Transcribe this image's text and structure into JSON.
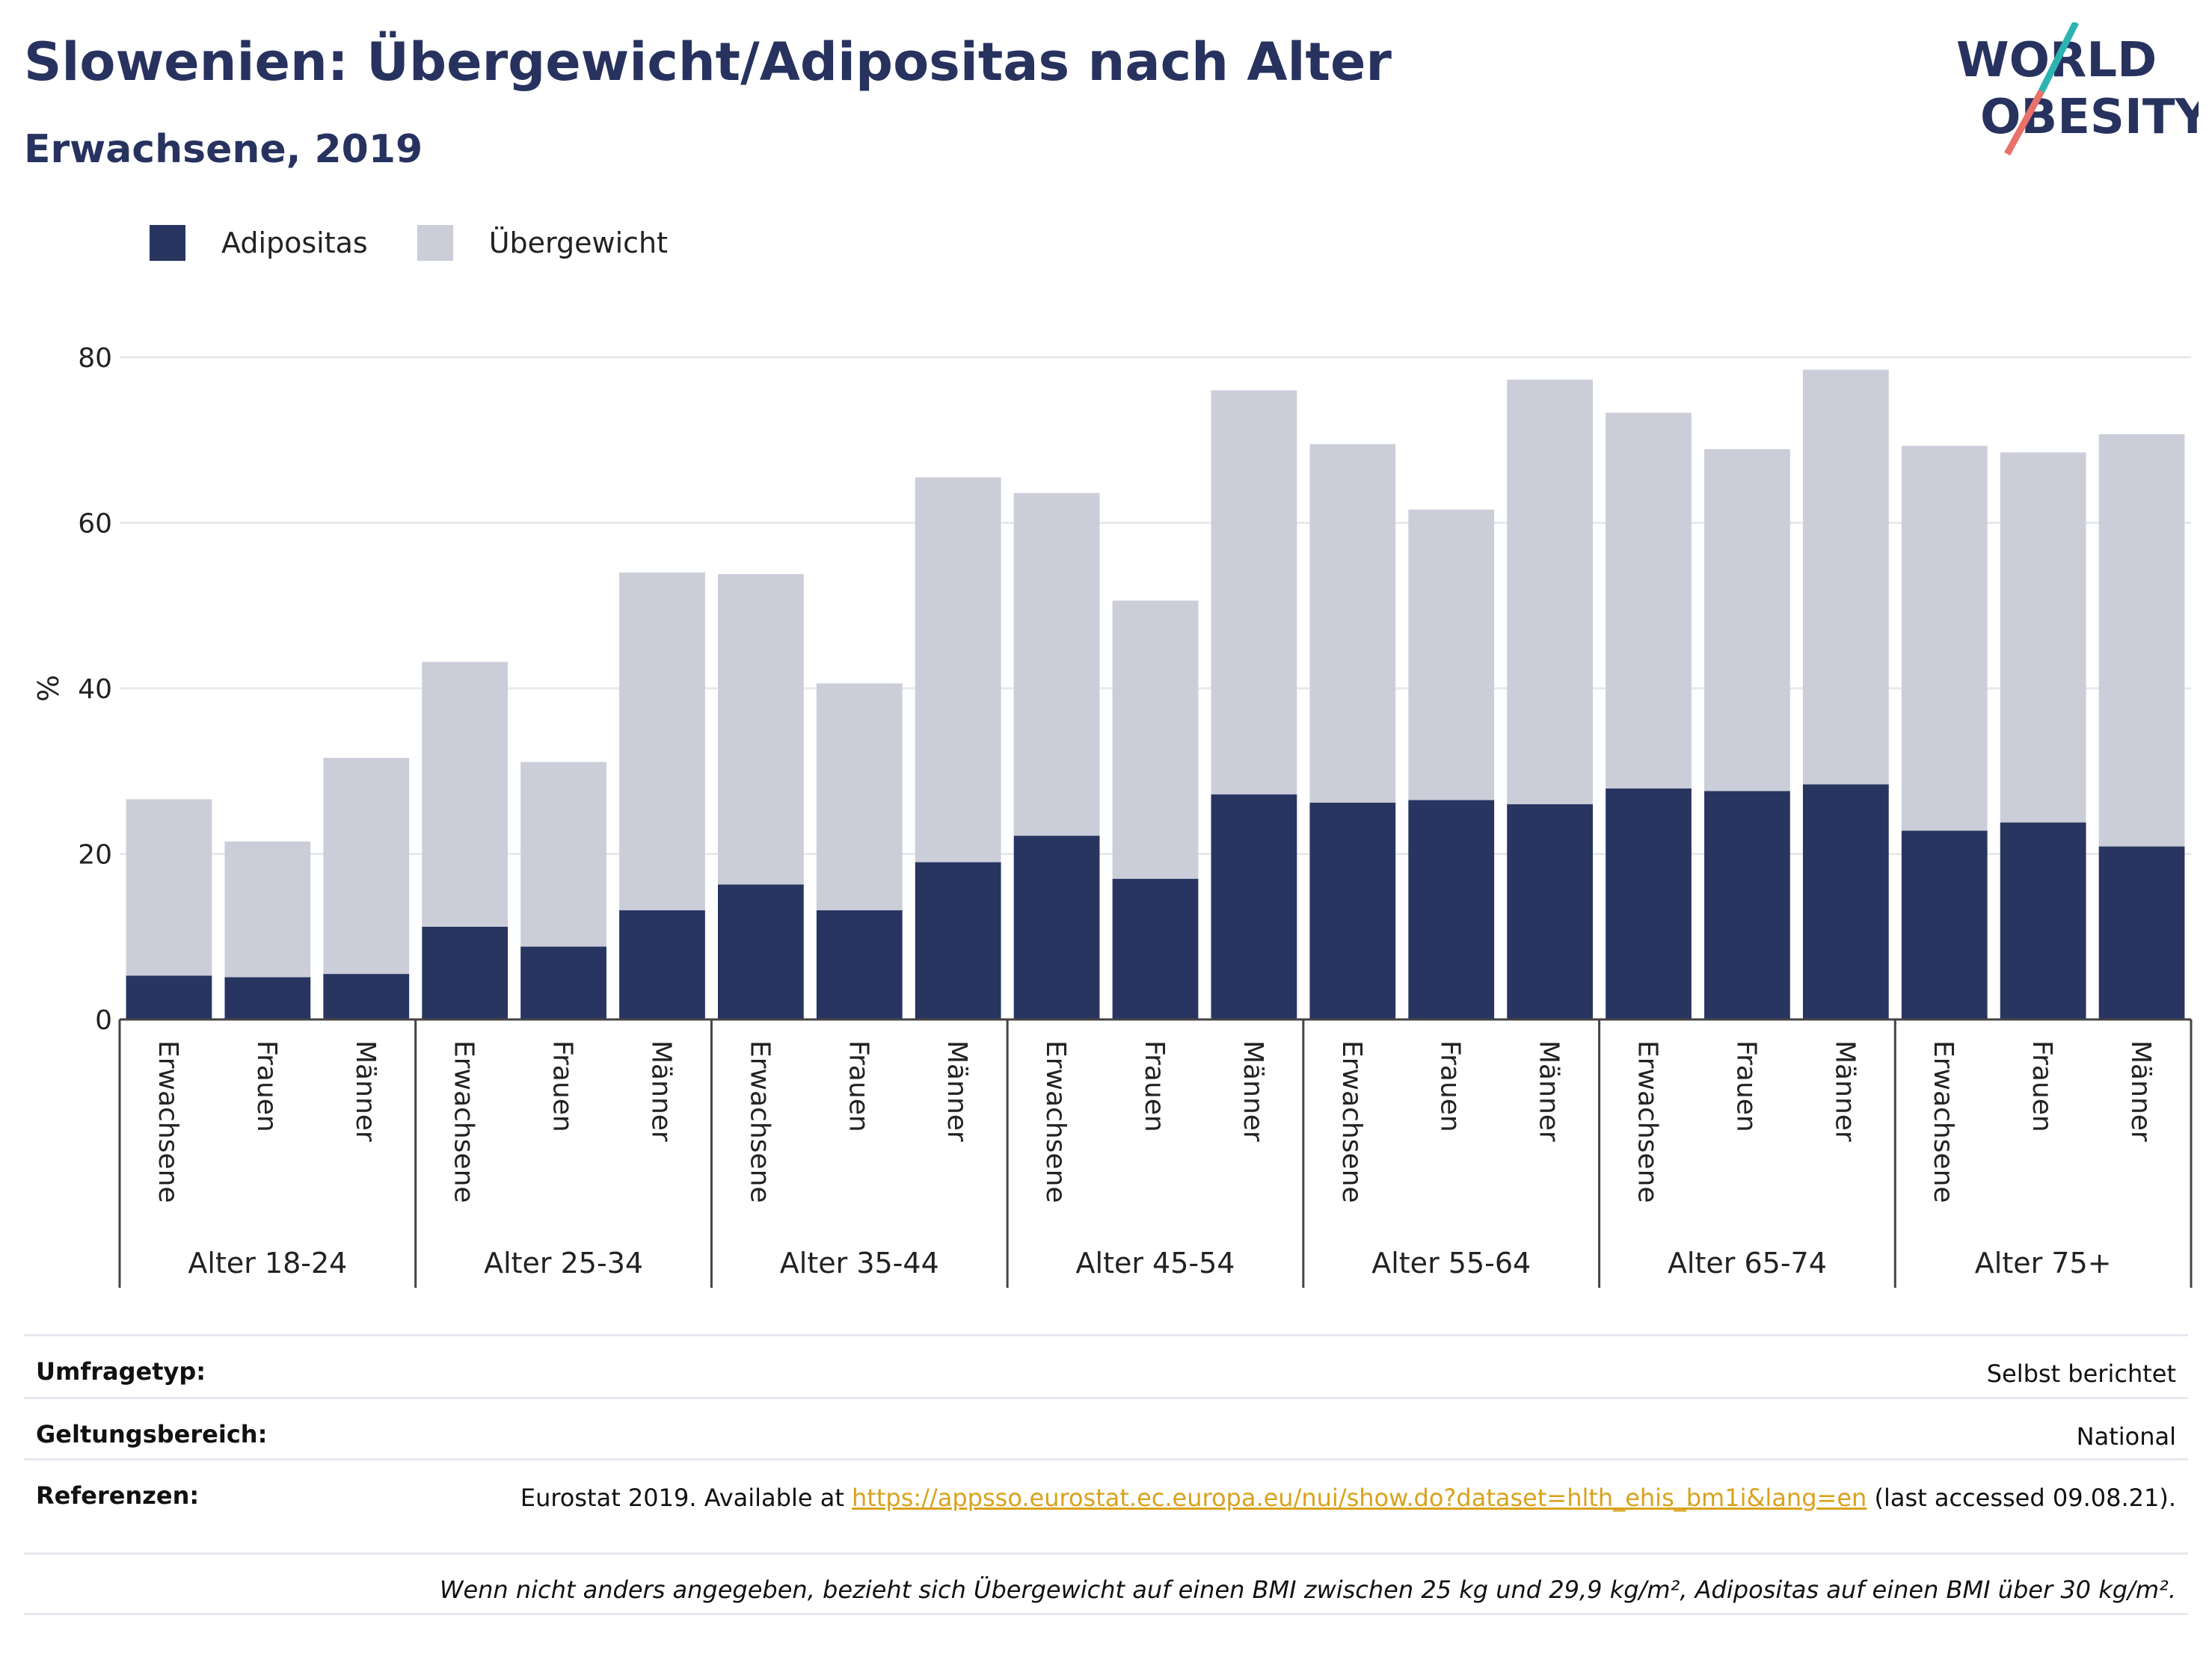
{
  "title": "Slowenien: Übergewicht/Adipositas nach Alter",
  "subtitle": "Erwachsene, 2019",
  "logo": {
    "line1": "WORLD",
    "line2": "OBESITY"
  },
  "colors": {
    "adipositas": "#283561",
    "uebergewicht": "#cbcdd9",
    "title": "#27325f",
    "link": "#d9a21b"
  },
  "chart_data": {
    "type": "bar",
    "stacked": true,
    "ylabel": "%",
    "ylim": [
      0,
      80
    ],
    "yticks": [
      0,
      20,
      40,
      60,
      80
    ],
    "grid": true,
    "legend_position": "top-left",
    "groups": [
      "Alter 18-24",
      "Alter 25-34",
      "Alter 35-44",
      "Alter 45-54",
      "Alter 55-64",
      "Alter 65-74",
      "Alter 75+"
    ],
    "subcategories": [
      "Erwachsene",
      "Frauen",
      "Männer"
    ],
    "series": [
      {
        "name": "Adipositas",
        "values": [
          5.3,
          5.1,
          5.5,
          11.2,
          8.8,
          13.2,
          16.3,
          13.2,
          19.0,
          22.2,
          17.0,
          27.2,
          26.2,
          26.5,
          26.0,
          27.9,
          27.6,
          28.4,
          22.8,
          23.8,
          20.9
        ]
      },
      {
        "name": "Übergewicht",
        "values": [
          21.3,
          16.4,
          26.1,
          32.0,
          22.3,
          40.8,
          37.5,
          27.4,
          46.5,
          41.4,
          33.6,
          48.8,
          43.3,
          35.1,
          51.3,
          45.4,
          41.3,
          50.1,
          46.5,
          44.7,
          49.8
        ]
      }
    ]
  },
  "meta": {
    "survey_label": "Umfragetyp:",
    "survey_value": "Selbst berichtet",
    "scope_label": "Geltungsbereich:",
    "scope_value": "National",
    "refs_label": "Referenzen:",
    "refs_prefix": "Eurostat 2019. Available at ",
    "refs_link": "https://appsso.eurostat.ec.europa.eu/nui/show.do?dataset=hlth_ehis_bm1i&lang=en",
    "refs_suffix": " (last accessed 09.08.21).",
    "note": "Wenn nicht anders angegeben, bezieht sich Übergewicht auf einen BMI zwischen 25 kg und 29,9 kg/m², Adipositas auf einen BMI über 30 kg/m²."
  }
}
